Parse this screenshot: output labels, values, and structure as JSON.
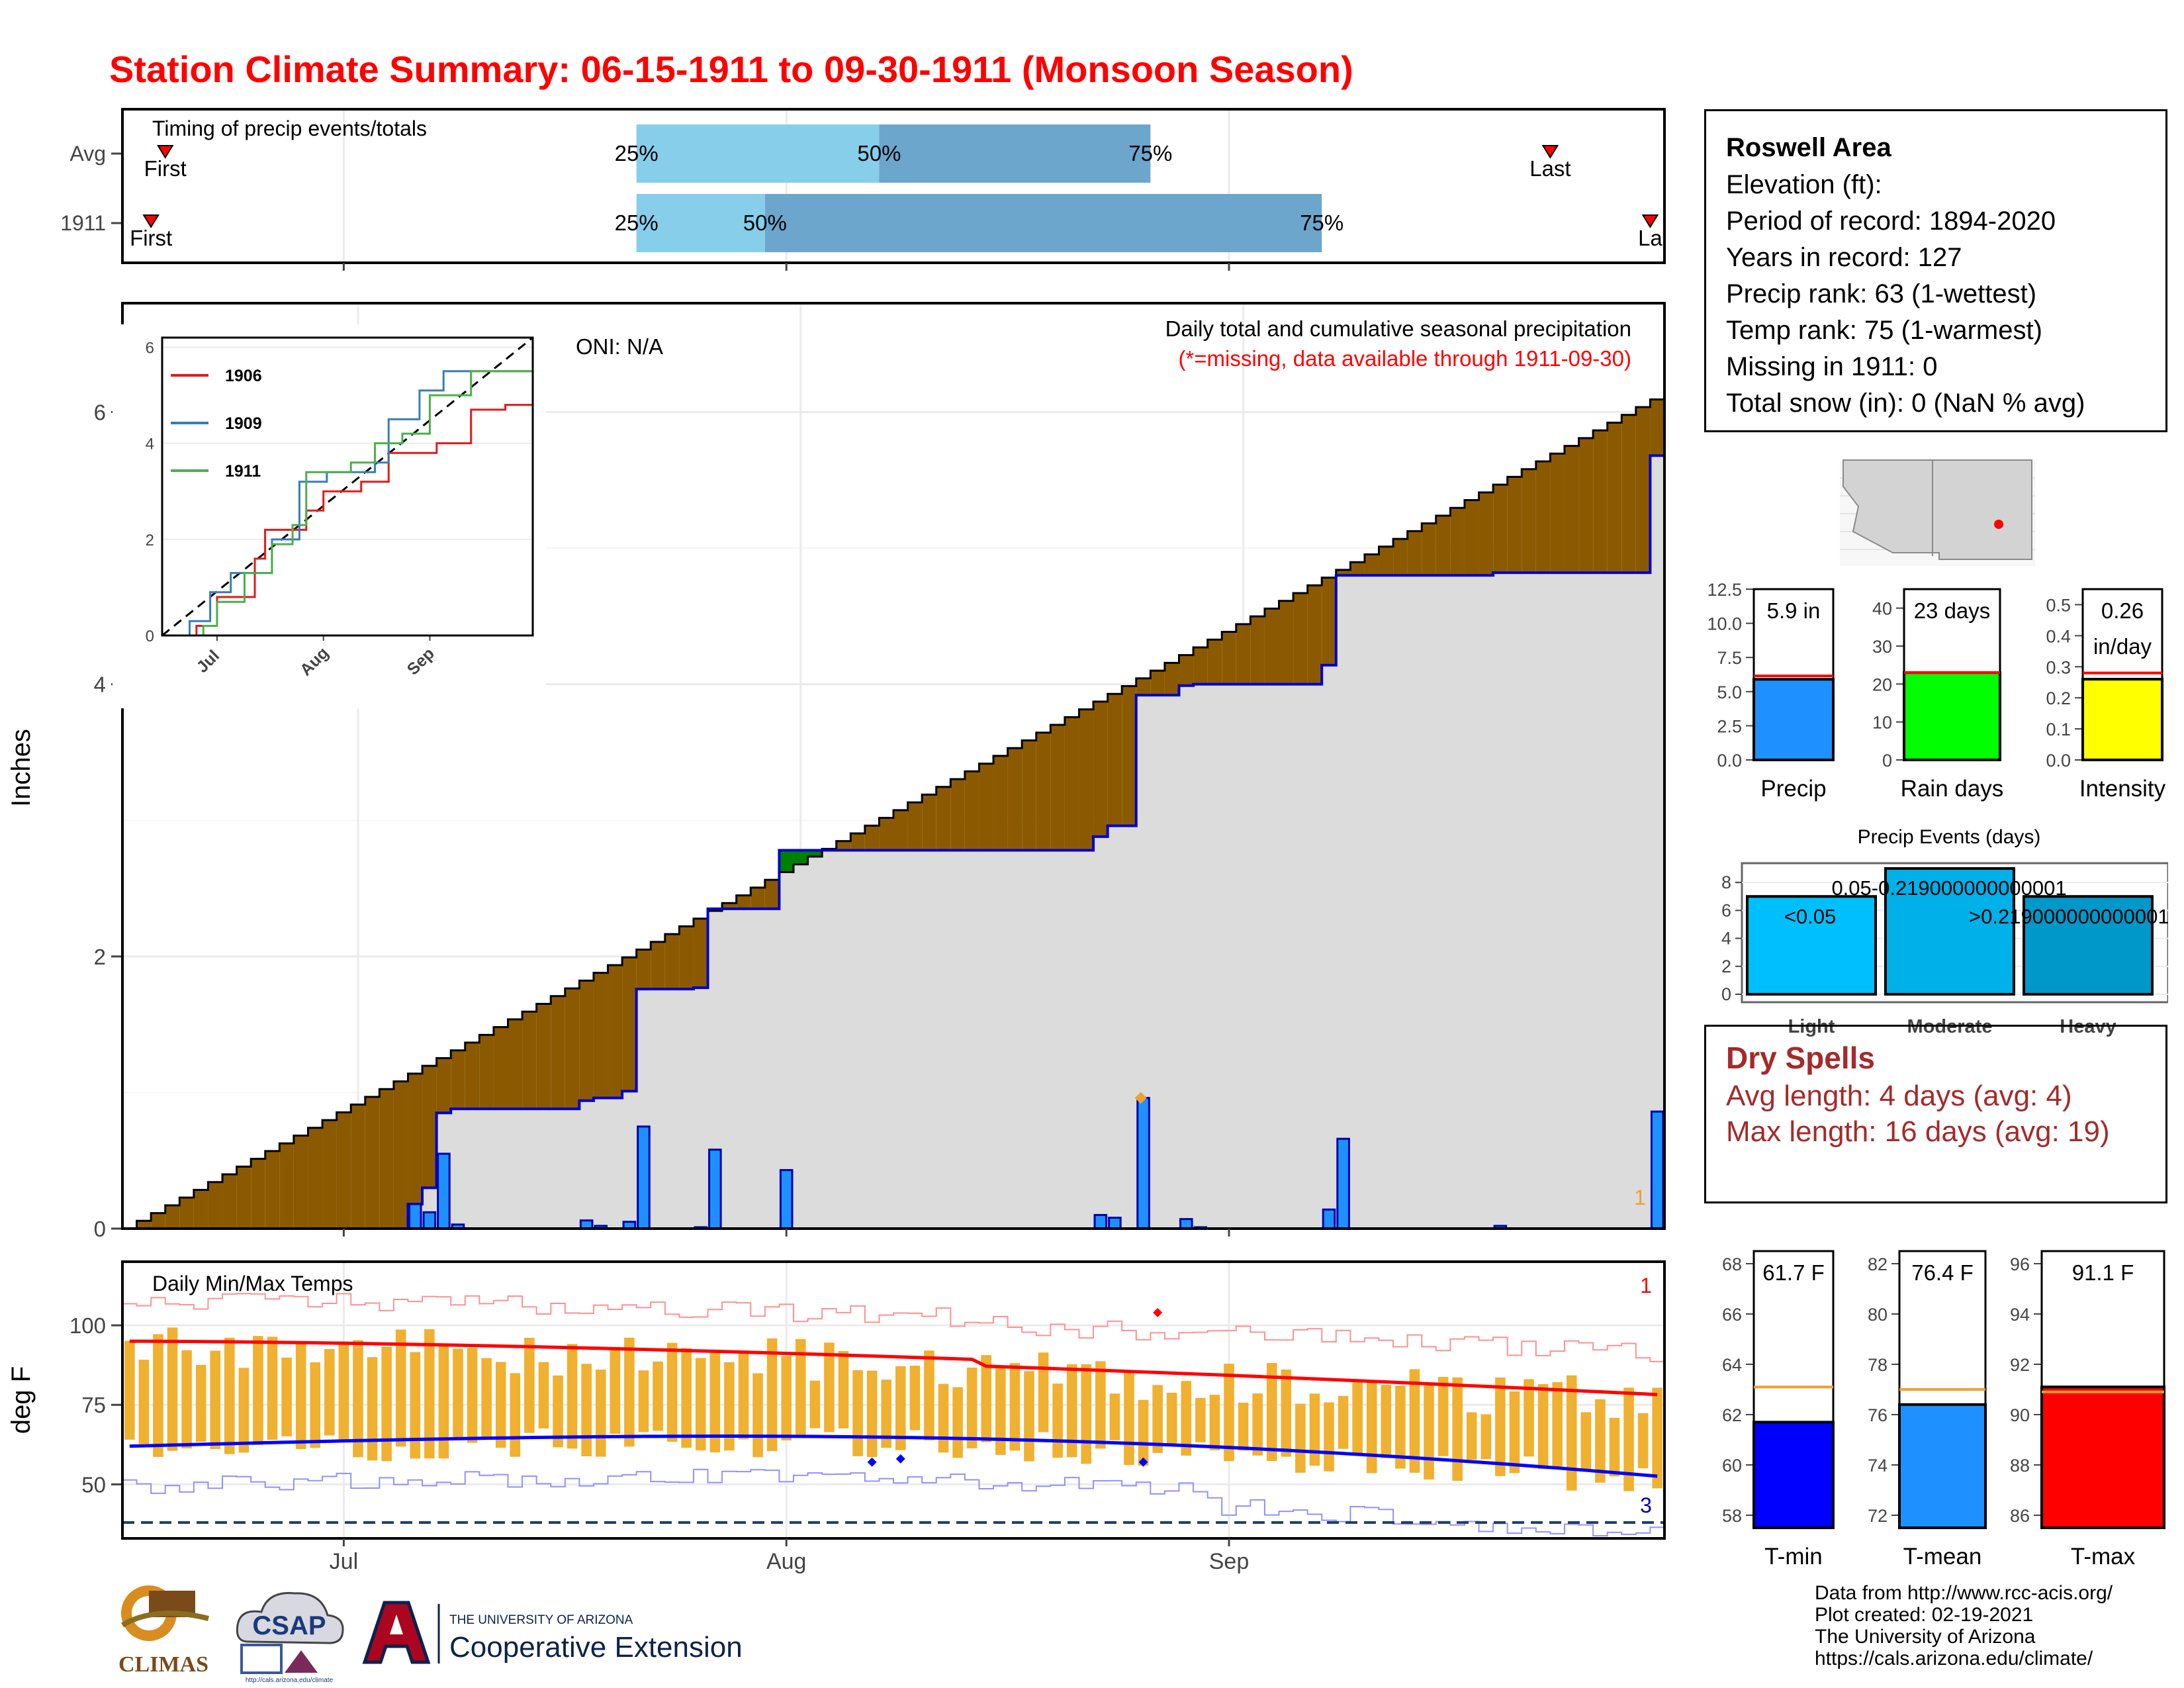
{
  "header": {
    "title": "Station Climate Summary: 06-15-1911 to 09-30-1911 (Monsoon Season)"
  },
  "station": {
    "name": "Roswell Area",
    "lines": [
      "Elevation (ft):",
      "Period of record: 1894-2020",
      "Years in record: 127",
      "Precip rank: 63 (1-wettest)",
      "Temp rank: 75 (1-warmest)",
      "Missing in 1911: 0",
      "Total snow (in): 0 (NaN % avg)"
    ]
  },
  "dry_spells": {
    "title": "Dry Spells",
    "avg_length": "Avg length: 4 days (avg: 4)",
    "max_length": "Max length: 16 days (avg: 19)"
  },
  "credits": {
    "lines": [
      "Data from http://www.rcc-acis.org/",
      "Plot created: 02-19-2021",
      "The University of Arizona",
      "https://cals.arizona.edu/climate/"
    ]
  },
  "logos": {
    "climas": "CLIMAS",
    "csap": "CSAP",
    "csap_url": "http://cals.arizona.edu/climate",
    "ua_small": "THE UNIVERSITY OF ARIZONA",
    "ua_big": "Cooperative Extension"
  },
  "colors": {
    "title_red": "#ff0000",
    "brown_surplus": "#8B5A00",
    "green_deficit": "#008000",
    "avg_fill": "#dcdcdc",
    "daily_bar": "#1e90ff",
    "light_blue": "#87ceeb",
    "mid_blue": "#6ca6cd",
    "temp_bar": "#f0b030",
    "tmax_line": "#ff0000",
    "tmin_line": "#0000ff",
    "dry_red": "#a52a2a"
  },
  "chart_data": [
    {
      "type": "timeline",
      "name": "timing",
      "title": "Timing of precip events/totals",
      "rows": [
        {
          "label": "Avg",
          "first": "06-18",
          "p25": "07-21",
          "p50": "08-07",
          "p75": "08-26",
          "last": "09-23"
        },
        {
          "label": "1911",
          "first": "06-17",
          "p25": "07-21",
          "p50": "07-30",
          "p75": "09-07",
          "last": "09-30"
        }
      ],
      "marker_labels": {
        "first": "First",
        "last": "Last",
        "p25": "25%",
        "p50": "50%",
        "p75": "75%"
      },
      "last_label_1911": "La"
    },
    {
      "type": "area",
      "name": "cumulative_precip",
      "annotation": "Daily total and cumulative seasonal precipitation",
      "missing_note": "(*=missing, data available through 1911-09-30)",
      "oni": "ONI: N/A",
      "ylabel": "Inches",
      "ylim": [
        0,
        6.8
      ],
      "yticks": [
        0,
        2,
        4,
        6
      ],
      "xticks": [
        {
          "date": "07-01",
          "label": "Jul"
        },
        {
          "date": "08-01",
          "label": "Aug"
        },
        {
          "date": "09-01",
          "label": "Sep"
        }
      ],
      "start_date": "06-15",
      "days": 108,
      "avg_total": 6.15,
      "daily_1911": [
        {
          "date": "06-30",
          "value": 0.0
        },
        {
          "date": "07-05",
          "value": 0.18
        },
        {
          "date": "07-06",
          "value": 0.12
        },
        {
          "date": "07-07",
          "value": 0.55
        },
        {
          "date": "07-08",
          "value": 0.03
        },
        {
          "date": "07-17",
          "value": 0.06
        },
        {
          "date": "07-18",
          "value": 0.02
        },
        {
          "date": "07-20",
          "value": 0.05
        },
        {
          "date": "07-21",
          "value": 0.75
        },
        {
          "date": "07-25",
          "value": 0.01
        },
        {
          "date": "07-26",
          "value": 0.58
        },
        {
          "date": "07-31",
          "value": 0.43
        },
        {
          "date": "08-29",
          "value": 0.01
        },
        {
          "date": "08-22",
          "value": 0.1
        },
        {
          "date": "08-23",
          "value": 0.08
        },
        {
          "date": "08-25",
          "value": 0.96
        },
        {
          "date": "08-28",
          "value": 0.07
        },
        {
          "date": "09-07",
          "value": 0.14
        },
        {
          "date": "09-08",
          "value": 0.66
        },
        {
          "date": "09-19",
          "value": 0.02
        },
        {
          "date": "09-30",
          "value": 0.86
        }
      ],
      "side_count": "1"
    },
    {
      "type": "line",
      "name": "inset_cumulative",
      "series": [
        {
          "name": "1906",
          "color": "#e41a1c"
        },
        {
          "name": "1909",
          "color": "#377eb8"
        },
        {
          "name": "1911",
          "color": "#4daf4a"
        }
      ],
      "ylim": [
        0,
        6.2
      ],
      "yticks": [
        0,
        2,
        4,
        6
      ],
      "xticks": [
        "Jul",
        "Aug",
        "Sep"
      ]
    },
    {
      "type": "bar",
      "name": "temps",
      "title": "Daily Min/Max Temps",
      "ylabel": "deg F",
      "ylim": [
        33,
        120
      ],
      "yticks": [
        50,
        75,
        100
      ],
      "xticks": [
        "Jul",
        "Aug",
        "Sep"
      ],
      "reference_line": 38,
      "count_top": "1",
      "count_bottom": "3"
    },
    {
      "type": "bar",
      "name": "summary_precip",
      "categories": [
        "Precip",
        "Rain days",
        "Intensity"
      ],
      "panels": [
        {
          "label": "Precip",
          "value": 5.9,
          "avg": 6.15,
          "text": "5.9 in",
          "ylim": [
            0,
            12.5
          ],
          "yticks": [
            "0.0",
            "2.5",
            "5.0",
            "7.5",
            "10.0",
            "12.5"
          ],
          "color": "#1e90ff"
        },
        {
          "label": "Rain days",
          "value": 23,
          "avg": 23,
          "text": "23 days",
          "ylim": [
            0,
            45
          ],
          "yticks": [
            "0",
            "10",
            "20",
            "30",
            "40"
          ],
          "color": "#00ff00"
        },
        {
          "label": "Intensity",
          "value": 0.26,
          "avg": 0.28,
          "text": "0.26 in/day",
          "ylim": [
            0,
            0.55
          ],
          "yticks": [
            "0.0",
            "0.1",
            "0.2",
            "0.3",
            "0.4",
            "0.5"
          ],
          "color": "#ffff00"
        }
      ]
    },
    {
      "type": "bar",
      "name": "precip_events",
      "title": "Precip Events (days)",
      "categories": [
        "Light",
        "Moderate",
        "Heavy"
      ],
      "bin_labels": [
        "<0.05",
        "0.05-0.219000000000001",
        ">0.219000000000001"
      ],
      "values": [
        7,
        9,
        7
      ],
      "ylim": [
        0,
        9
      ],
      "yticks": [
        0,
        2,
        4,
        6,
        8
      ]
    },
    {
      "type": "bar",
      "name": "summary_temps",
      "categories": [
        "T-min",
        "T-mean",
        "T-max"
      ],
      "panels": [
        {
          "label": "T-min",
          "value": 61.7,
          "avg": 63.1,
          "text": "61.7 F",
          "ylim": [
            57.5,
            68.5
          ],
          "yticks": [
            58,
            60,
            62,
            64,
            66,
            68
          ],
          "color": "#0000ff"
        },
        {
          "label": "T-mean",
          "value": 76.4,
          "avg": 77.0,
          "text": "76.4 F",
          "ylim": [
            71.5,
            82.5
          ],
          "yticks": [
            72,
            74,
            76,
            78,
            80,
            82
          ],
          "color": "#1e90ff"
        },
        {
          "label": "T-max",
          "value": 91.1,
          "avg": 90.9,
          "text": "91.1 F",
          "ylim": [
            85.5,
            96.5
          ],
          "yticks": [
            86,
            88,
            90,
            92,
            94,
            96
          ],
          "color": "#ff0000"
        }
      ]
    }
  ]
}
